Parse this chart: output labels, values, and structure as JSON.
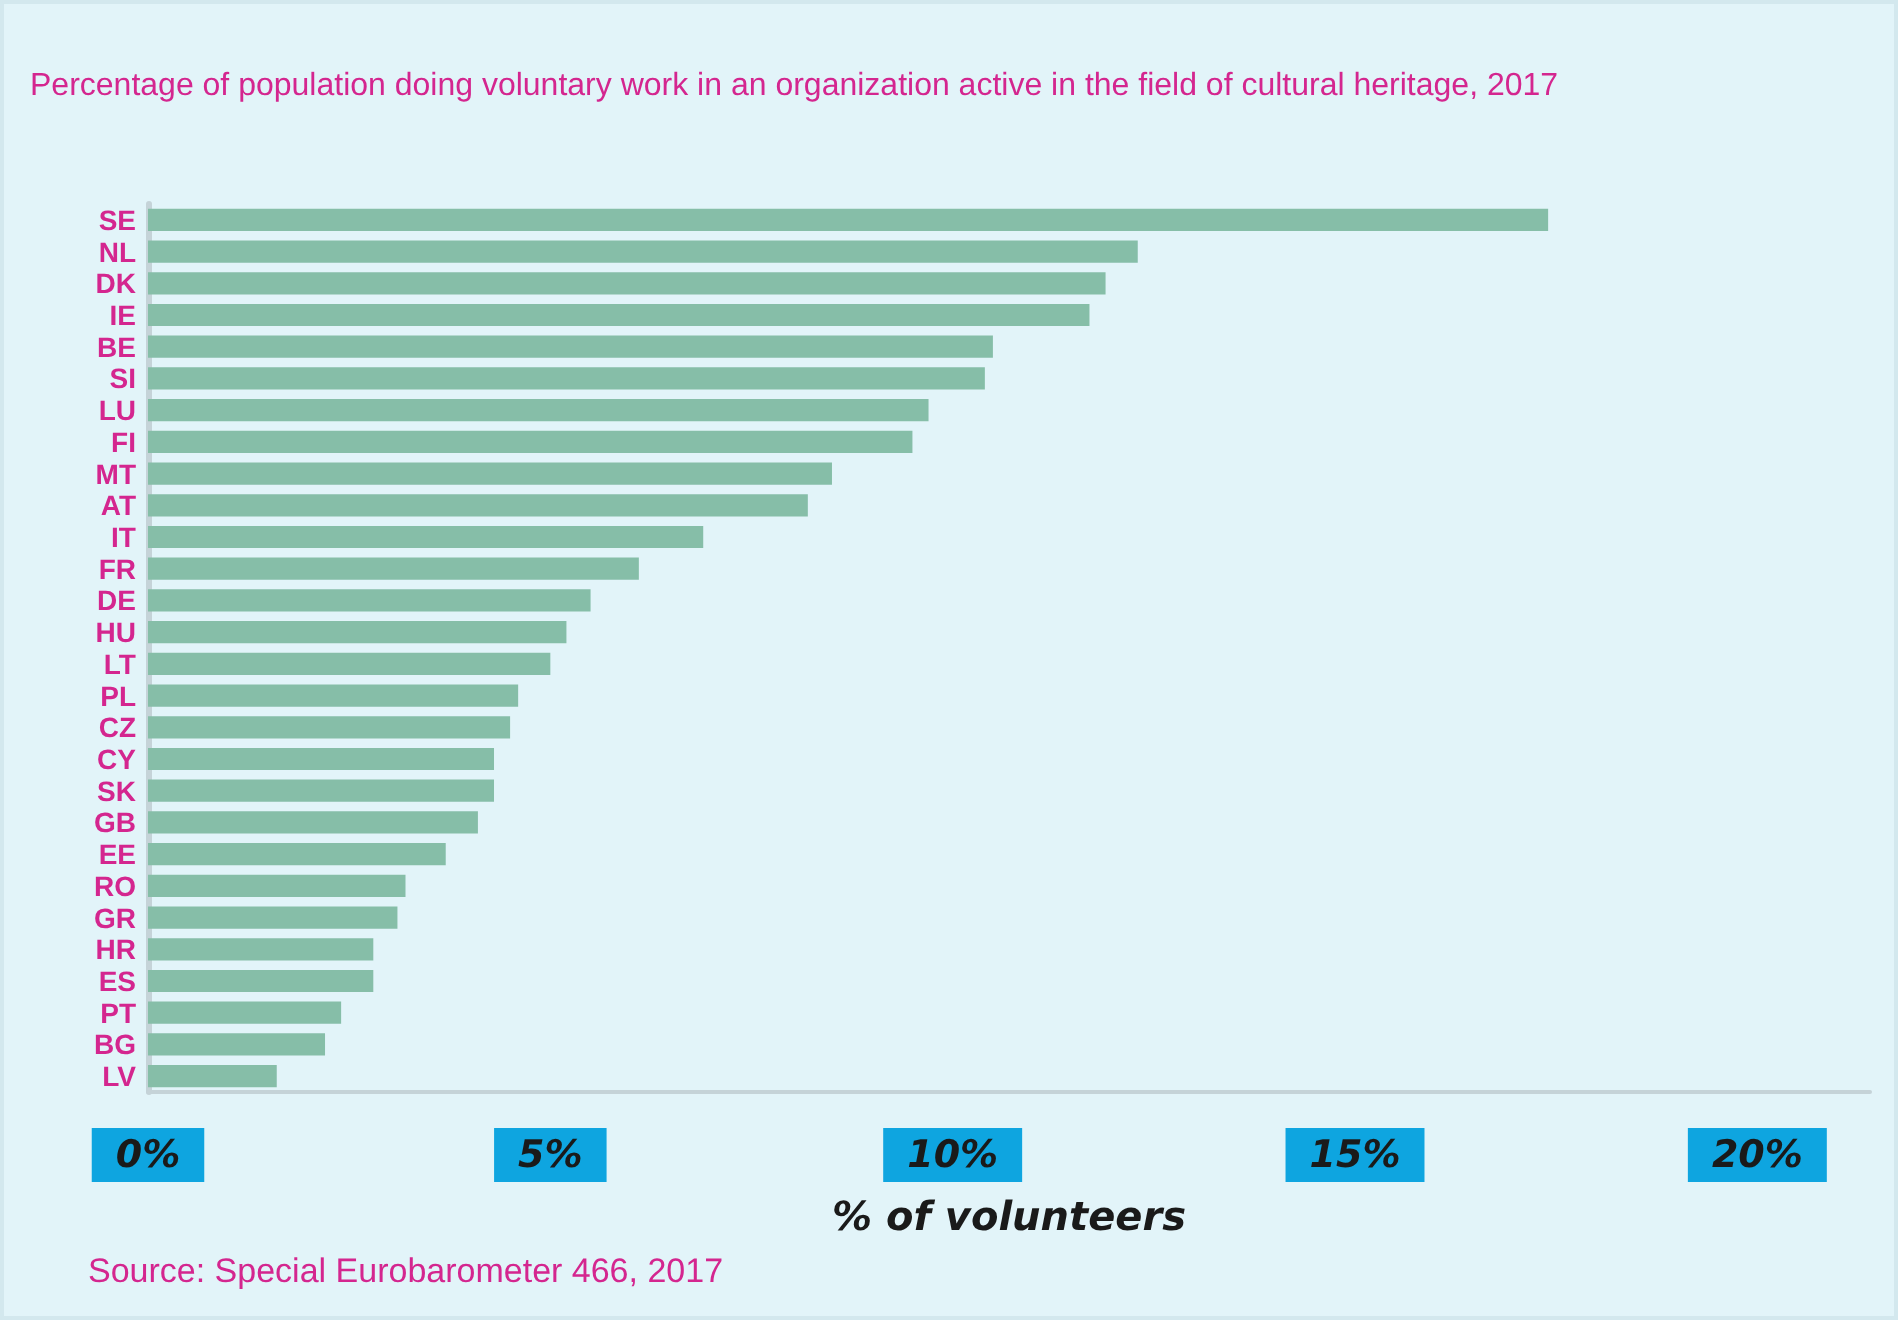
{
  "chart_data": {
    "type": "bar",
    "orientation": "horizontal",
    "title": "Percentage of population doing voluntary work in an organization active in the field of cultural heritage, 2017",
    "xlabel": "% of volunteers",
    "annotations": [
      "Source: Special Eurobarometer 466, 2017"
    ],
    "categories": [
      "SE",
      "NL",
      "DK",
      "IE",
      "BE",
      "SI",
      "LU",
      "FI",
      "MT",
      "AT",
      "IT",
      "FR",
      "DE",
      "HU",
      "LT",
      "PL",
      "CZ",
      "CY",
      "SK",
      "GB",
      "EE",
      "RO",
      "GR",
      "HR",
      "ES",
      "PT",
      "BG",
      "LV"
    ],
    "values": [
      17.4,
      12.3,
      11.9,
      11.7,
      10.5,
      10.4,
      9.7,
      9.5,
      8.5,
      8.2,
      6.9,
      6.1,
      5.5,
      5.2,
      5.0,
      4.6,
      4.5,
      4.3,
      4.3,
      4.1,
      3.7,
      3.2,
      3.1,
      2.8,
      2.8,
      2.4,
      2.2,
      1.6
    ],
    "color": "#86bea8",
    "xlim": [
      0,
      21.4
    ],
    "xticks": [
      {
        "value": 0,
        "label": "0%"
      },
      {
        "value": 5,
        "label": "5%"
      },
      {
        "value": 10,
        "label": "10%"
      },
      {
        "value": 15,
        "label": "15%"
      },
      {
        "value": 20,
        "label": "20%"
      }
    ],
    "grid": false
  }
}
